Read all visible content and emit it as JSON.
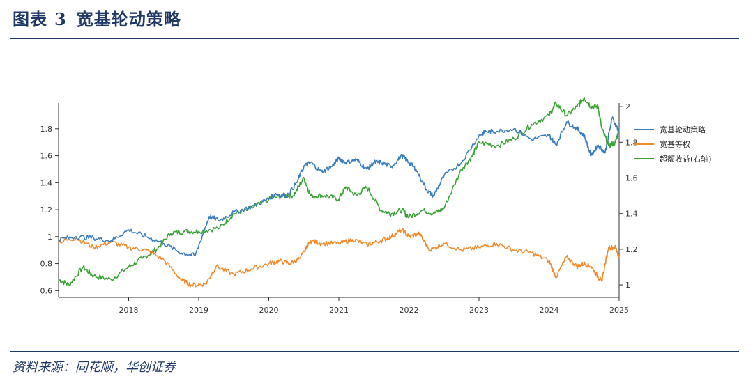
{
  "header": {
    "label": "图表",
    "number": "3",
    "title": "宽基轮动策略"
  },
  "source": "资料来源：同花顺，华创证券",
  "colors": {
    "strategy": "#3a7dbf",
    "equal_weight": "#f28a2a",
    "excess": "#3aa335",
    "rule": "#1f3864"
  },
  "chart_data": {
    "type": "line",
    "title": "宽基轮动策略",
    "x_ticks": [
      "2018",
      "2019",
      "2020",
      "2021",
      "2022",
      "2023",
      "2024",
      "2025"
    ],
    "x_range": [
      2017.0,
      2025.0
    ],
    "left_axis": {
      "ticks": [
        "0.6",
        "0.8",
        "1",
        "1.2",
        "1.4",
        "1.6",
        "1.8"
      ],
      "ylim": [
        0.55,
        1.99
      ]
    },
    "right_axis": {
      "label": "右轴",
      "ticks": [
        "1",
        "1.2",
        "1.4",
        "1.6",
        "1.8",
        "2"
      ],
      "ylim": [
        0.93,
        2.02
      ]
    },
    "legend_position": "right",
    "series": [
      {
        "name": "宽基轮动策略",
        "axis": "left",
        "x": [
          2017.0,
          2017.25,
          2017.5,
          2017.75,
          2018.0,
          2018.25,
          2018.5,
          2018.75,
          2018.95,
          2019.15,
          2019.3,
          2019.5,
          2019.75,
          2020.0,
          2020.1,
          2020.25,
          2020.4,
          2020.5,
          2020.6,
          2020.75,
          2020.9,
          2021.0,
          2021.1,
          2021.25,
          2021.4,
          2021.5,
          2021.6,
          2021.75,
          2021.9,
          2022.0,
          2022.1,
          2022.25,
          2022.35,
          2022.5,
          2022.75,
          2023.0,
          2023.1,
          2023.25,
          2023.5,
          2023.75,
          2024.0,
          2024.1,
          2024.25,
          2024.4,
          2024.5,
          2024.6,
          2024.7,
          2024.8,
          2024.9,
          2025.0
        ],
        "values": [
          0.98,
          1.0,
          0.99,
          0.97,
          1.05,
          1.0,
          0.95,
          0.88,
          0.86,
          1.15,
          1.12,
          1.18,
          1.22,
          1.28,
          1.32,
          1.3,
          1.4,
          1.52,
          1.55,
          1.48,
          1.52,
          1.58,
          1.55,
          1.57,
          1.5,
          1.55,
          1.55,
          1.52,
          1.6,
          1.55,
          1.5,
          1.35,
          1.3,
          1.45,
          1.55,
          1.75,
          1.78,
          1.78,
          1.8,
          1.72,
          1.75,
          1.68,
          1.85,
          1.8,
          1.75,
          1.6,
          1.68,
          1.62,
          1.88,
          1.78
        ]
      },
      {
        "name": "宽基等权",
        "axis": "left",
        "x": [
          2017.0,
          2017.25,
          2017.5,
          2017.75,
          2018.0,
          2018.25,
          2018.5,
          2018.75,
          2018.9,
          2019.1,
          2019.25,
          2019.5,
          2019.75,
          2020.0,
          2020.15,
          2020.3,
          2020.45,
          2020.6,
          2020.75,
          2021.0,
          2021.2,
          2021.4,
          2021.6,
          2021.75,
          2021.9,
          2022.0,
          2022.15,
          2022.3,
          2022.5,
          2022.75,
          2023.0,
          2023.25,
          2023.5,
          2023.75,
          2024.0,
          2024.1,
          2024.25,
          2024.4,
          2024.5,
          2024.6,
          2024.7,
          2024.75,
          2024.85,
          2024.95,
          2025.0
        ],
        "values": [
          0.96,
          0.99,
          0.92,
          0.96,
          0.92,
          0.9,
          0.83,
          0.68,
          0.64,
          0.65,
          0.78,
          0.72,
          0.76,
          0.8,
          0.82,
          0.8,
          0.84,
          0.97,
          0.95,
          0.95,
          0.98,
          0.94,
          0.97,
          1.0,
          1.05,
          1.0,
          1.02,
          0.9,
          0.95,
          0.9,
          0.92,
          0.95,
          0.9,
          0.88,
          0.82,
          0.7,
          0.85,
          0.78,
          0.8,
          0.78,
          0.7,
          0.67,
          0.92,
          0.92,
          0.85
        ]
      },
      {
        "name": "超额收益(右轴)",
        "axis": "right",
        "x": [
          2017.0,
          2017.15,
          2017.35,
          2017.5,
          2017.75,
          2018.0,
          2018.2,
          2018.4,
          2018.6,
          2018.8,
          2019.0,
          2019.3,
          2019.5,
          2019.7,
          2020.0,
          2020.2,
          2020.35,
          2020.5,
          2020.6,
          2020.8,
          2021.0,
          2021.1,
          2021.25,
          2021.4,
          2021.6,
          2021.75,
          2021.9,
          2022.0,
          2022.2,
          2022.35,
          2022.5,
          2022.75,
          2022.9,
          2023.0,
          2023.25,
          2023.5,
          2023.75,
          2024.0,
          2024.1,
          2024.25,
          2024.4,
          2024.5,
          2024.6,
          2024.7,
          2024.75,
          2024.85,
          2024.95,
          2025.0
        ],
        "values": [
          1.03,
          1.0,
          1.1,
          1.05,
          1.03,
          1.1,
          1.15,
          1.2,
          1.29,
          1.3,
          1.3,
          1.32,
          1.4,
          1.42,
          1.48,
          1.5,
          1.5,
          1.6,
          1.5,
          1.5,
          1.48,
          1.55,
          1.5,
          1.55,
          1.42,
          1.4,
          1.42,
          1.38,
          1.42,
          1.4,
          1.43,
          1.65,
          1.72,
          1.8,
          1.78,
          1.82,
          1.9,
          1.95,
          2.02,
          1.95,
          2.0,
          2.05,
          2.0,
          2.0,
          1.88,
          1.78,
          1.8,
          1.88
        ]
      }
    ]
  }
}
